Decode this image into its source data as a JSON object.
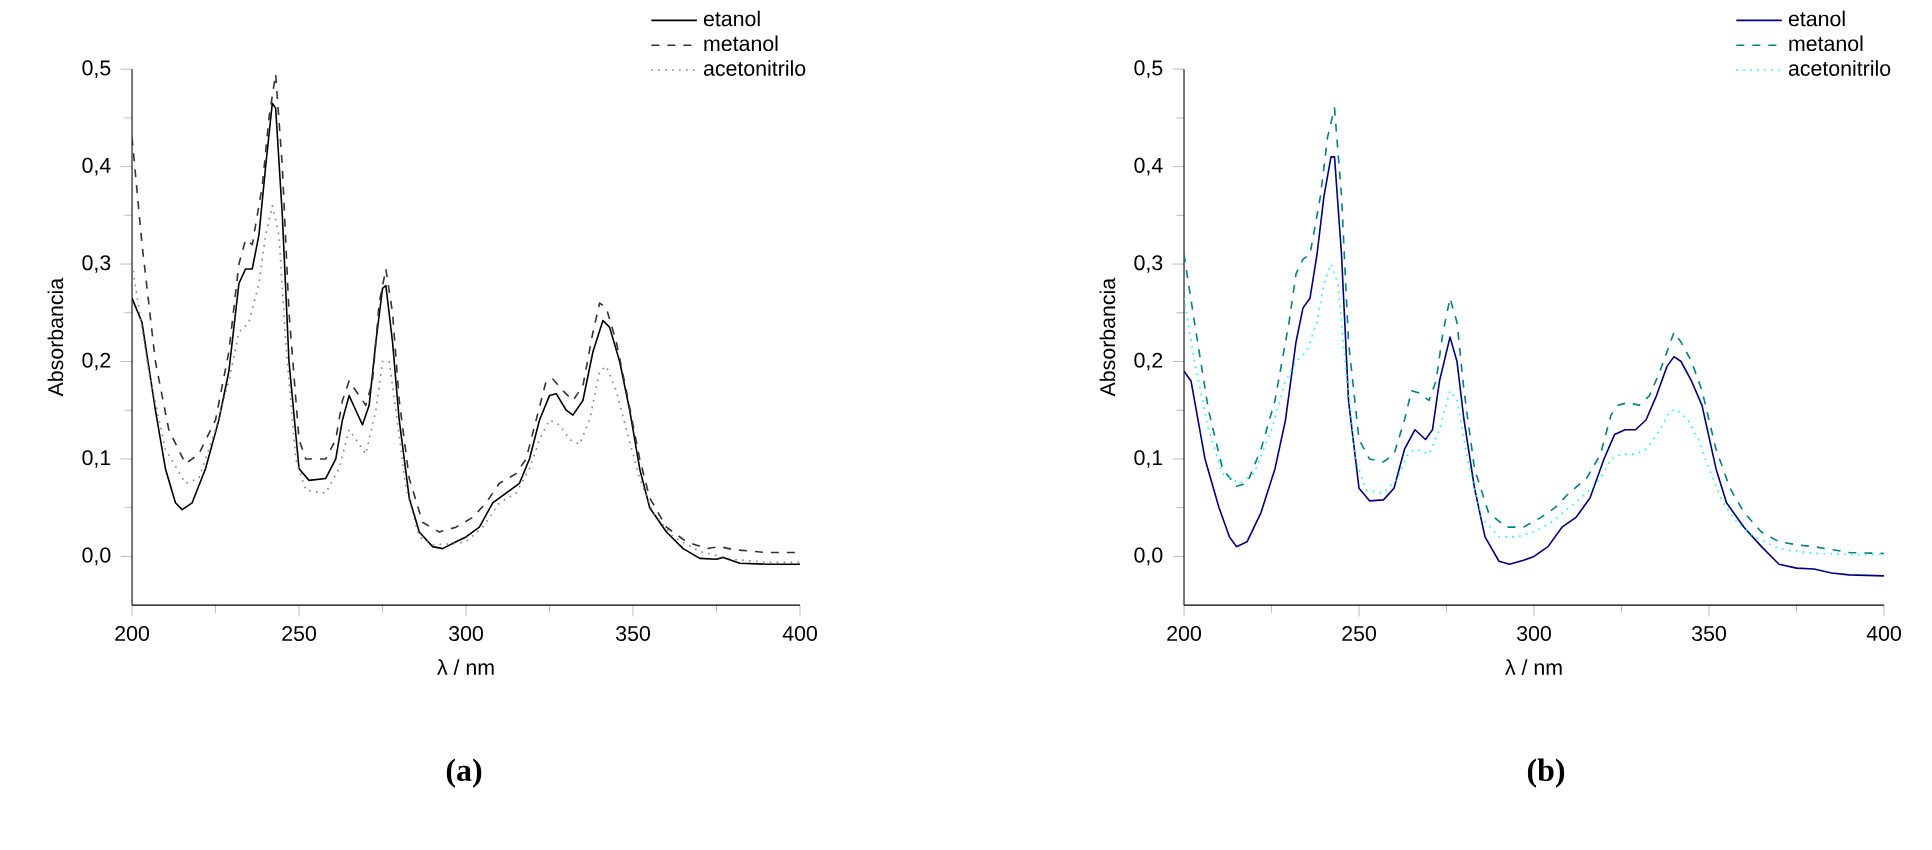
{
  "chart_data": [
    {
      "type": "line",
      "xlabel": "λ / nm",
      "ylabel": "Absorbancia",
      "xlim": [
        200,
        400
      ],
      "ylim": [
        -0.05,
        0.5
      ],
      "xticks": [
        200,
        250,
        300,
        350,
        400
      ],
      "yticks": [
        {
          "value": 0.0,
          "label": "0,0"
        },
        {
          "value": 0.1,
          "label": "0,1"
        },
        {
          "value": 0.2,
          "label": "0,2"
        },
        {
          "value": 0.3,
          "label": "0,3"
        },
        {
          "value": 0.4,
          "label": "0,4"
        },
        {
          "value": 0.5,
          "label": "0,5"
        }
      ],
      "legend": "top right",
      "grid": false,
      "annotations": [
        "(a)"
      ],
      "series": [
        {
          "name": "etanol",
          "color": "#000000",
          "line_style": "solid",
          "x": [
            200,
            203,
            207,
            210,
            213,
            215,
            218,
            222,
            226,
            229,
            232,
            234,
            236,
            238,
            240,
            242,
            243,
            245,
            247,
            250,
            253,
            258,
            261,
            263,
            265,
            267,
            269,
            271,
            273,
            275,
            276,
            278,
            280,
            283,
            286,
            290,
            293,
            297,
            300,
            304,
            308,
            312,
            316,
            319,
            322,
            325,
            327,
            330,
            332,
            335,
            338,
            341,
            343,
            346,
            349,
            352,
            355,
            360,
            365,
            370,
            375,
            377,
            382,
            390,
            400
          ],
          "values": [
            0.265,
            0.24,
            0.15,
            0.09,
            0.055,
            0.048,
            0.055,
            0.09,
            0.14,
            0.19,
            0.28,
            0.295,
            0.295,
            0.33,
            0.4,
            0.465,
            0.46,
            0.35,
            0.2,
            0.09,
            0.078,
            0.08,
            0.1,
            0.14,
            0.165,
            0.15,
            0.135,
            0.155,
            0.22,
            0.275,
            0.278,
            0.22,
            0.14,
            0.06,
            0.025,
            0.01,
            0.008,
            0.015,
            0.02,
            0.03,
            0.055,
            0.065,
            0.075,
            0.1,
            0.14,
            0.165,
            0.167,
            0.15,
            0.145,
            0.16,
            0.21,
            0.242,
            0.235,
            0.2,
            0.15,
            0.09,
            0.05,
            0.025,
            0.008,
            -0.002,
            -0.003,
            -0.001,
            -0.007,
            -0.008,
            -0.008
          ]
        },
        {
          "name": "metanol",
          "color": "#333333",
          "line_style": "dashed",
          "x": [
            200,
            203,
            207,
            211,
            216,
            220,
            225,
            229,
            232,
            234,
            236,
            239,
            241,
            243,
            245,
            247,
            250,
            252,
            258,
            261,
            263,
            265,
            267,
            270,
            272,
            274,
            276,
            278,
            280,
            283,
            287,
            292,
            297,
            302,
            306,
            310,
            315,
            318,
            321,
            324,
            326,
            329,
            332,
            335,
            338,
            340,
            342,
            345,
            348,
            352,
            355,
            360,
            366,
            372,
            376,
            380,
            390,
            400
          ],
          "values": [
            0.43,
            0.32,
            0.2,
            0.13,
            0.095,
            0.105,
            0.14,
            0.21,
            0.3,
            0.325,
            0.32,
            0.38,
            0.45,
            0.495,
            0.4,
            0.25,
            0.12,
            0.1,
            0.1,
            0.12,
            0.16,
            0.18,
            0.17,
            0.155,
            0.18,
            0.26,
            0.295,
            0.25,
            0.16,
            0.08,
            0.035,
            0.025,
            0.03,
            0.04,
            0.055,
            0.075,
            0.085,
            0.1,
            0.14,
            0.18,
            0.182,
            0.17,
            0.16,
            0.175,
            0.23,
            0.26,
            0.255,
            0.22,
            0.17,
            0.1,
            0.06,
            0.03,
            0.015,
            0.008,
            0.01,
            0.007,
            0.004,
            0.004
          ]
        },
        {
          "name": "acetonitrilo",
          "color": "#808080",
          "line_style": "dotted",
          "x": [
            200,
            205,
            210,
            216,
            220,
            225,
            229,
            232,
            235,
            238,
            240,
            242,
            244,
            246,
            249,
            252,
            258,
            262,
            265,
            267,
            270,
            273,
            275,
            277,
            279,
            282,
            286,
            290,
            296,
            300,
            305,
            310,
            315,
            319,
            322,
            325,
            328,
            331,
            334,
            337,
            340,
            342,
            345,
            348,
            352,
            356,
            362,
            370,
            380,
            390,
            400
          ],
          "values": [
            0.3,
            0.19,
            0.11,
            0.075,
            0.08,
            0.13,
            0.18,
            0.23,
            0.24,
            0.28,
            0.33,
            0.36,
            0.33,
            0.22,
            0.1,
            0.068,
            0.065,
            0.09,
            0.13,
            0.12,
            0.105,
            0.15,
            0.2,
            0.2,
            0.15,
            0.07,
            0.02,
            0.012,
            0.013,
            0.015,
            0.03,
            0.055,
            0.065,
            0.09,
            0.12,
            0.14,
            0.135,
            0.12,
            0.115,
            0.14,
            0.19,
            0.195,
            0.17,
            0.13,
            0.08,
            0.045,
            0.02,
            0.005,
            -0.003,
            -0.006,
            -0.006
          ]
        }
      ]
    },
    {
      "type": "line",
      "xlabel": "λ / nm",
      "ylabel": "Absorbancia",
      "xlim": [
        200,
        400
      ],
      "ylim": [
        -0.05,
        0.5
      ],
      "xticks": [
        200,
        250,
        300,
        350,
        400
      ],
      "yticks": [
        {
          "value": 0.0,
          "label": "0,0"
        },
        {
          "value": 0.1,
          "label": "0,1"
        },
        {
          "value": 0.2,
          "label": "0,2"
        },
        {
          "value": 0.3,
          "label": "0,3"
        },
        {
          "value": 0.4,
          "label": "0,4"
        },
        {
          "value": 0.5,
          "label": "0,5"
        }
      ],
      "legend": "top right",
      "grid": false,
      "annotations": [
        "(b)"
      ],
      "series": [
        {
          "name": "etanol",
          "color": "#000080",
          "line_style": "solid",
          "x": [
            200,
            202,
            206,
            210,
            213,
            215,
            218,
            222,
            226,
            229,
            232,
            234,
            236,
            238,
            240,
            242,
            243,
            245,
            247,
            250,
            253,
            257,
            260,
            263,
            266,
            269,
            271,
            273,
            276,
            278,
            280,
            283,
            286,
            290,
            293,
            297,
            300,
            304,
            308,
            312,
            316,
            320,
            323,
            326,
            329,
            332,
            335,
            338,
            340,
            342,
            345,
            348,
            352,
            355,
            360,
            365,
            370,
            375,
            380,
            385,
            390,
            400
          ],
          "values": [
            0.19,
            0.18,
            0.1,
            0.05,
            0.02,
            0.01,
            0.015,
            0.045,
            0.09,
            0.14,
            0.22,
            0.255,
            0.265,
            0.31,
            0.37,
            0.41,
            0.41,
            0.31,
            0.16,
            0.07,
            0.057,
            0.058,
            0.07,
            0.11,
            0.13,
            0.12,
            0.13,
            0.18,
            0.225,
            0.2,
            0.14,
            0.07,
            0.02,
            -0.005,
            -0.008,
            -0.004,
            0.0,
            0.01,
            0.03,
            0.04,
            0.06,
            0.1,
            0.125,
            0.13,
            0.13,
            0.14,
            0.165,
            0.195,
            0.205,
            0.2,
            0.18,
            0.155,
            0.09,
            0.055,
            0.03,
            0.01,
            -0.008,
            -0.012,
            -0.013,
            -0.017,
            -0.019,
            -0.02
          ]
        },
        {
          "name": "metanol",
          "color": "#008080",
          "line_style": "dashed",
          "x": [
            200,
            203,
            207,
            211,
            215,
            218,
            222,
            226,
            230,
            232,
            234,
            236,
            239,
            241,
            243,
            245,
            247,
            250,
            253,
            257,
            260,
            263,
            265,
            267,
            270,
            272,
            274,
            276,
            278,
            280,
            283,
            287,
            292,
            297,
            302,
            306,
            310,
            315,
            319,
            322,
            324,
            327,
            330,
            333,
            336,
            338,
            340,
            342,
            345,
            348,
            352,
            356,
            360,
            365,
            370,
            375,
            380,
            390,
            400
          ],
          "values": [
            0.31,
            0.24,
            0.15,
            0.09,
            0.072,
            0.075,
            0.11,
            0.16,
            0.24,
            0.29,
            0.305,
            0.31,
            0.37,
            0.43,
            0.46,
            0.37,
            0.22,
            0.12,
            0.1,
            0.097,
            0.105,
            0.14,
            0.17,
            0.168,
            0.16,
            0.18,
            0.23,
            0.265,
            0.24,
            0.17,
            0.09,
            0.045,
            0.03,
            0.03,
            0.04,
            0.05,
            0.065,
            0.08,
            0.105,
            0.145,
            0.155,
            0.158,
            0.155,
            0.165,
            0.19,
            0.21,
            0.23,
            0.22,
            0.2,
            0.17,
            0.11,
            0.07,
            0.045,
            0.025,
            0.015,
            0.012,
            0.01,
            0.004,
            0.003
          ]
        },
        {
          "name": "acetonitrilo",
          "color": "#00ffff",
          "line_style": "dotted",
          "x": [
            200,
            203,
            207,
            211,
            216,
            220,
            225,
            229,
            232,
            235,
            238,
            240,
            242,
            244,
            246,
            249,
            252,
            257,
            261,
            264,
            266,
            270,
            273,
            276,
            278,
            281,
            285,
            290,
            295,
            300,
            305,
            310,
            315,
            319,
            322,
            325,
            329,
            332,
            336,
            339,
            341,
            344,
            347,
            350,
            354,
            358,
            363,
            370,
            380,
            390,
            400
          ],
          "values": [
            0.265,
            0.2,
            0.13,
            0.085,
            0.075,
            0.085,
            0.13,
            0.18,
            0.2,
            0.21,
            0.24,
            0.28,
            0.3,
            0.28,
            0.2,
            0.1,
            0.068,
            0.065,
            0.08,
            0.105,
            0.11,
            0.105,
            0.13,
            0.17,
            0.16,
            0.1,
            0.04,
            0.02,
            0.02,
            0.025,
            0.035,
            0.05,
            0.065,
            0.08,
            0.1,
            0.105,
            0.105,
            0.11,
            0.13,
            0.15,
            0.15,
            0.14,
            0.12,
            0.09,
            0.055,
            0.035,
            0.02,
            0.008,
            0.003,
            0.002,
            0.002
          ]
        }
      ]
    }
  ]
}
